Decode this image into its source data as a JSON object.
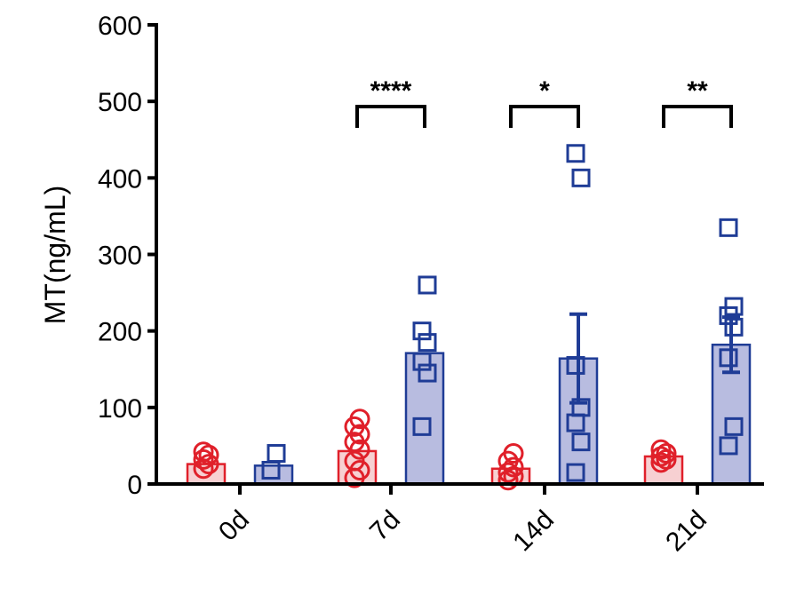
{
  "chart_data": {
    "type": "bar",
    "ylabel": "MT(ng/mL)",
    "ylim": [
      0,
      600
    ],
    "yticks": [
      0,
      100,
      200,
      300,
      400,
      500,
      600
    ],
    "categories": [
      "0d",
      "7d",
      "14d",
      "21d"
    ],
    "series": [
      {
        "color": "#e0202a",
        "fill": "#f7d0d2",
        "marker": "circle",
        "means": [
          26,
          43,
          20,
          36
        ],
        "sem": [
          null,
          null,
          null,
          null
        ],
        "points": [
          [
            20,
            26,
            32,
            38,
            42
          ],
          [
            8,
            18,
            30,
            45,
            55,
            65,
            75,
            85
          ],
          [
            5,
            10,
            15,
            22,
            30,
            40
          ],
          [
            28,
            32,
            36,
            40,
            45
          ]
        ]
      },
      {
        "color": "#1f3c96",
        "fill": "#b8bce0",
        "marker": "square",
        "means": [
          24,
          171,
          164,
          182
        ],
        "sem": [
          null,
          null,
          58,
          36
        ],
        "points": [
          [
            18,
            40
          ],
          [
            75,
            145,
            160,
            185,
            200,
            260
          ],
          [
            15,
            55,
            80,
            100,
            155,
            400,
            432
          ],
          [
            50,
            75,
            165,
            205,
            220,
            232,
            335
          ]
        ]
      }
    ],
    "significance": [
      {
        "category": "7d",
        "label": "****"
      },
      {
        "category": "14d",
        "label": "*"
      },
      {
        "category": "21d",
        "label": "**"
      }
    ]
  }
}
